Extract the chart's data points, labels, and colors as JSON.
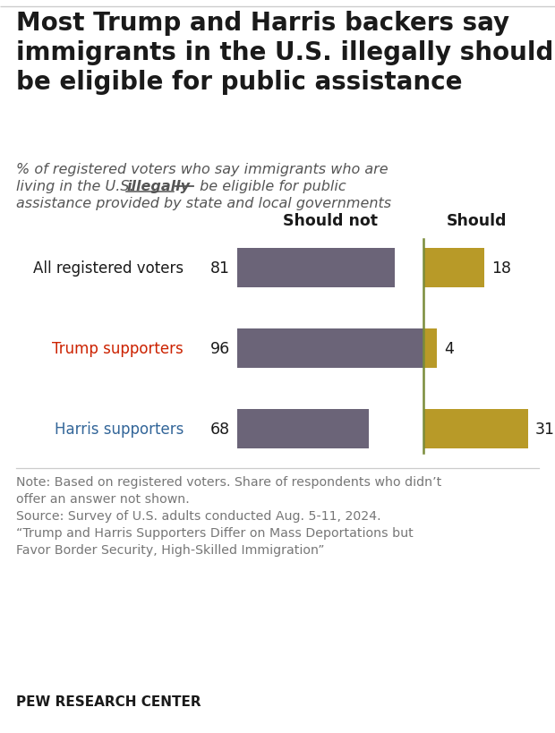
{
  "title": "Most Trump and Harris backers say\nimmigrants in the U.S. illegally shouldn’t\nbe eligible for public assistance",
  "col_label_left": "Should not",
  "col_label_right": "Should",
  "categories": [
    "All registered voters",
    "Trump supporters",
    "Harris supporters"
  ],
  "category_colors": [
    "#1a1a1a",
    "#cc2200",
    "#336699"
  ],
  "should_not": [
    81,
    96,
    68
  ],
  "should": [
    18,
    4,
    31
  ],
  "bar_color_should_not": "#6b6478",
  "bar_color_should": "#b89a28",
  "divider_color": "#7a8c3a",
  "note_line1": "Note: Based on registered voters. Share of respondents who didn’t",
  "note_line2": "offer an answer not shown.",
  "note_line3": "Source: Survey of U.S. adults conducted Aug. 5-11, 2024.",
  "note_line4": "“Trump and Harris Supporters Differ on Mass Deportations but",
  "note_line5": "Favor Border Security, High-Skilled Immigration”",
  "footer": "PEW RESEARCH CENTER",
  "bg_color": "#ffffff"
}
